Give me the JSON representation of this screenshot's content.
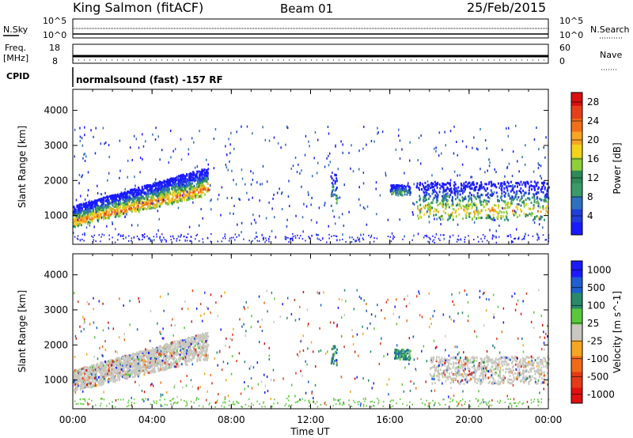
{
  "header": {
    "site": "King Salmon (fitACF)",
    "beam": "Beam 01",
    "date": "25/Feb/2015"
  },
  "aux_panels": {
    "nsky_label": "N.Sky",
    "nsky_ticks": [
      "10^5",
      "10^0"
    ],
    "nsearch_label": "N.Search",
    "nsearch_ticks": [
      "10^5",
      "10^0"
    ],
    "freq_label_1": "Freq.",
    "freq_label_2": "[MHz]",
    "freq_ticks": [
      "18",
      "8"
    ],
    "nave_label": "Nave",
    "nave_ticks": [
      "60",
      "0"
    ],
    "cpid_label": "CPID",
    "cpid_text": "normalsound (fast) -157 RF"
  },
  "chart_data": [
    {
      "type": "heatmap",
      "panel": "power",
      "xlabel": "Time UT",
      "ylabel": "Slant Range [km]",
      "x_ticks": [
        "00:00",
        "04:00",
        "08:00",
        "12:00",
        "16:00",
        "20:00",
        "00:00"
      ],
      "xlim": [
        0,
        24
      ],
      "y_ticks": [
        1000,
        2000,
        3000,
        4000
      ],
      "ylim": [
        180,
        4600
      ],
      "colorbar_label": "Power [dB]",
      "colorbar_ticks": [
        4,
        8,
        12,
        16,
        20,
        24,
        28
      ],
      "colorbar_range": [
        0,
        30
      ],
      "colors": [
        "#1a1aff",
        "#1f3fd8",
        "#2f6fbf",
        "#3a9a6a",
        "#2e8b57",
        "#8fcf3a",
        "#f2d21a",
        "#f5a623",
        "#f0701a",
        "#e6401a",
        "#d81010"
      ],
      "features": [
        {
          "x_start": 0.0,
          "x_end": 6.8,
          "range_low_km": 700,
          "range_high_km": 2400,
          "peak_db": 24,
          "note": "main band rising from 1000 to 2000 km"
        },
        {
          "x_start": 13.0,
          "x_end": 13.3,
          "range_low_km": 1300,
          "range_high_km": 2200,
          "peak_db": 12
        },
        {
          "x_start": 16.0,
          "x_end": 17.0,
          "range_low_km": 1600,
          "range_high_km": 1900,
          "peak_db": 12
        },
        {
          "x_start": 17.3,
          "x_end": 24.0,
          "range_low_km": 900,
          "range_high_km": 2000,
          "peak_db": 20
        }
      ]
    },
    {
      "type": "heatmap",
      "panel": "velocity",
      "xlabel": "Time UT",
      "ylabel": "Slant Range [km]",
      "x_ticks": [
        "00:00",
        "04:00",
        "08:00",
        "12:00",
        "16:00",
        "20:00",
        "00:00"
      ],
      "xlim": [
        0,
        24
      ],
      "y_ticks": [
        1000,
        2000,
        3000,
        4000
      ],
      "ylim": [
        180,
        4600
      ],
      "colorbar_label": "Velocity [m s^-1]",
      "colorbar_ticks": [
        1000,
        500,
        100,
        25,
        -25,
        -100,
        -500,
        -1000
      ],
      "colors": [
        "#1a1aff",
        "#1f5fcf",
        "#2a8a6a",
        "#5ac83a",
        "#c8c8c0",
        "#f5a623",
        "#f06a1a",
        "#e63a1a",
        "#e01010"
      ],
      "features": [
        {
          "x_start": 0.0,
          "x_end": 6.8,
          "range_low_km": 800,
          "range_high_km": 2400,
          "dominant_velocity": 0,
          "note": "ground scatter (grey)"
        },
        {
          "x_start": 13.0,
          "x_end": 13.3,
          "range_low_km": 1400,
          "range_high_km": 2000,
          "dominant_velocity": 300
        },
        {
          "x_start": 16.2,
          "x_end": 17.0,
          "range_low_km": 1600,
          "range_high_km": 1900,
          "dominant_velocity": 400
        },
        {
          "x_start": 18.0,
          "x_end": 24.0,
          "range_low_km": 900,
          "range_high_km": 1700,
          "dominant_velocity": 0,
          "note": "ground scatter (grey)"
        }
      ]
    }
  ]
}
